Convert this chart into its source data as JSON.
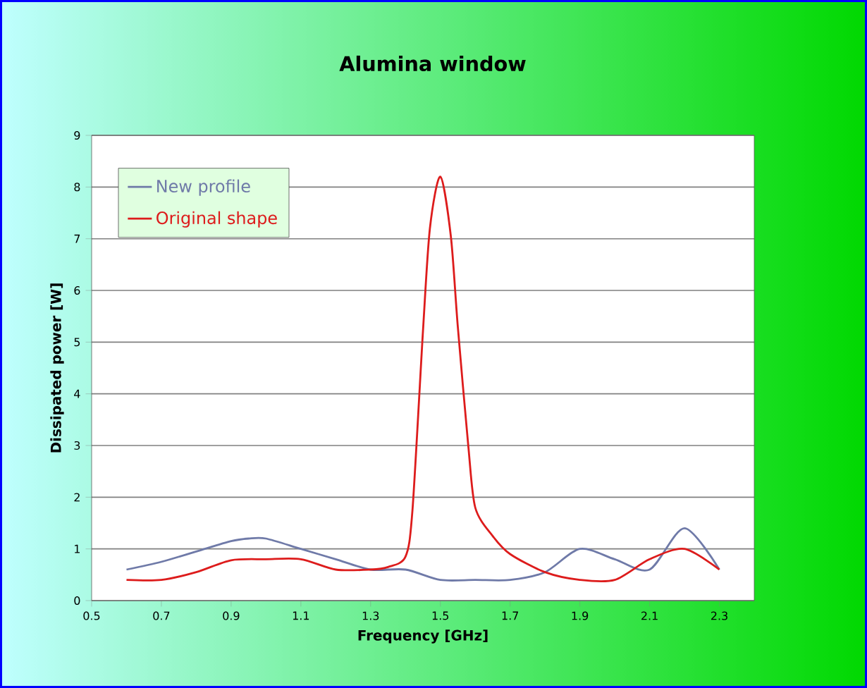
{
  "chart_data": {
    "type": "line",
    "title": "Alumina window",
    "xlabel": "Frequency [GHz]",
    "ylabel": "Dissipated power [W]",
    "xlim": [
      0.5,
      2.4
    ],
    "ylim": [
      0,
      9
    ],
    "xticks": [
      0.5,
      0.7,
      0.9,
      1.1,
      1.3,
      1.5,
      1.7,
      1.9,
      2.1,
      2.3
    ],
    "yticks": [
      0,
      1,
      2,
      3,
      4,
      5,
      6,
      7,
      8,
      9
    ],
    "grid": "y",
    "legend": "top left",
    "line_style": "solid",
    "marker": "none",
    "series": [
      {
        "name": "New profile",
        "color": "#6f7aa8",
        "x": [
          0.6,
          0.7,
          0.8,
          0.9,
          0.95,
          1.0,
          1.1,
          1.2,
          1.3,
          1.4,
          1.5,
          1.6,
          1.7,
          1.8,
          1.9,
          2.0,
          2.1,
          2.2,
          2.3
        ],
        "values": [
          0.6,
          0.75,
          0.95,
          1.15,
          1.2,
          1.2,
          1.0,
          0.8,
          0.6,
          0.6,
          0.4,
          0.4,
          0.4,
          0.55,
          1.0,
          0.8,
          0.6,
          1.4,
          0.6
        ]
      },
      {
        "name": "Original shape",
        "color": "#dd1c1c",
        "x": [
          0.6,
          0.7,
          0.8,
          0.9,
          1.0,
          1.1,
          1.2,
          1.3,
          1.35,
          1.4,
          1.42,
          1.45,
          1.47,
          1.5,
          1.53,
          1.55,
          1.58,
          1.6,
          1.65,
          1.7,
          1.8,
          1.9,
          2.0,
          2.1,
          2.2,
          2.3
        ],
        "values": [
          0.4,
          0.4,
          0.55,
          0.78,
          0.8,
          0.8,
          0.6,
          0.6,
          0.65,
          0.85,
          1.75,
          5.2,
          7.2,
          8.2,
          7.05,
          5.3,
          3.0,
          1.8,
          1.25,
          0.9,
          0.55,
          0.4,
          0.4,
          0.8,
          1.0,
          0.6
        ]
      }
    ]
  }
}
